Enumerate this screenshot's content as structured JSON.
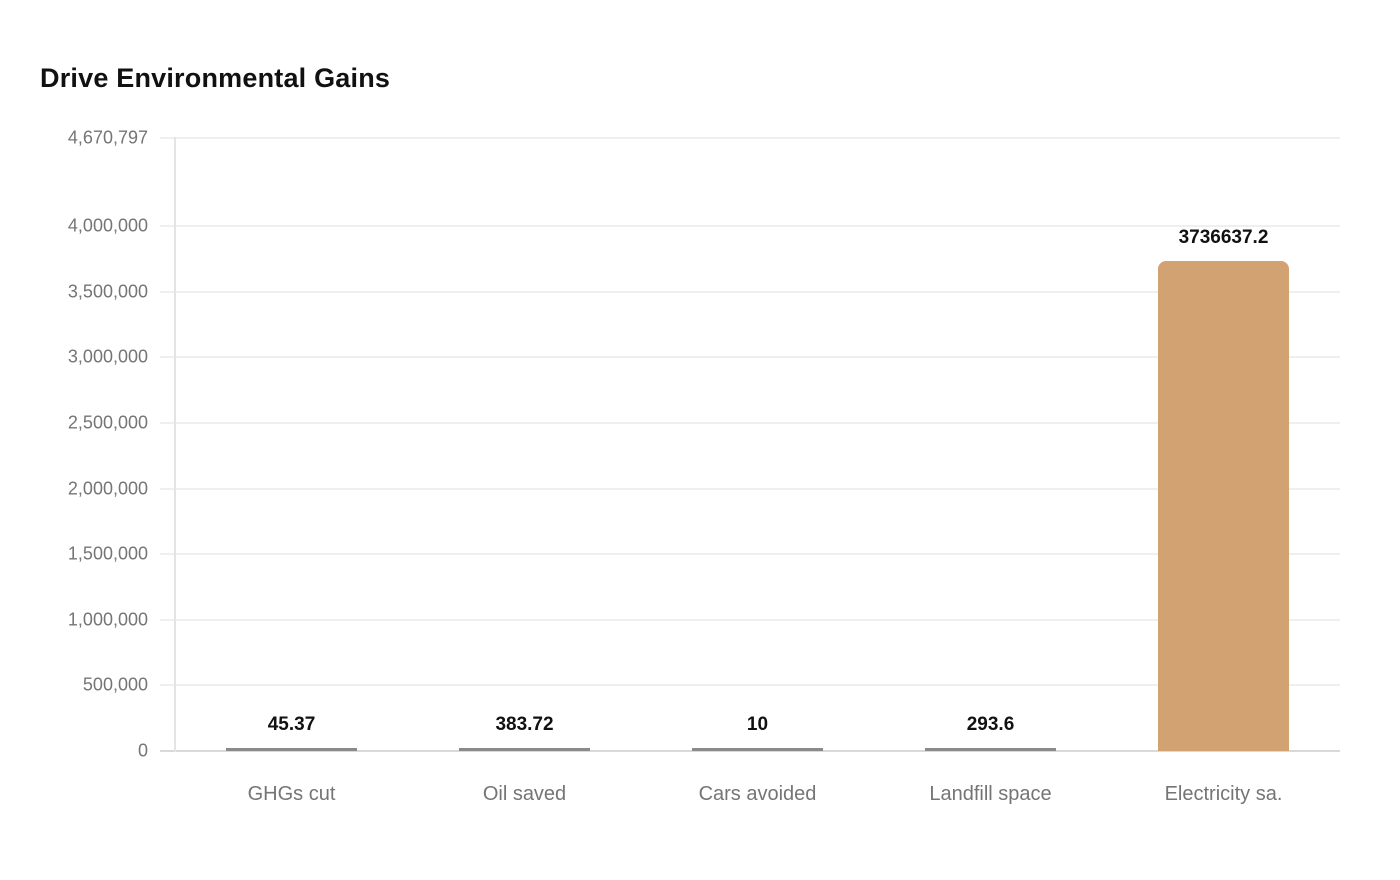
{
  "chart_data": {
    "type": "bar",
    "title": "Drive Environmental Gains",
    "categories": [
      "GHGs cut",
      "Oil saved",
      "Cars avoided",
      "Landfill space",
      "Electricity sa."
    ],
    "values": [
      45.37,
      383.72,
      10,
      293.6,
      3736637.2
    ],
    "value_labels": [
      "45.37",
      "383.72",
      "10",
      "293.6",
      "3736637.2"
    ],
    "xlabel": "",
    "ylabel": "",
    "ylim": [
      0,
      4670797
    ],
    "y_tick_values": [
      0,
      500000,
      1000000,
      1500000,
      2000000,
      2500000,
      3000000,
      3500000,
      4000000,
      4670797
    ],
    "y_tick_labels": [
      "0",
      "500,000",
      "1,000,000",
      "1,500,000",
      "2,000,000",
      "2,500,000",
      "3,000,000",
      "3,500,000",
      "4,000,000",
      "4,670,797"
    ],
    "grid": true,
    "legend": "none",
    "colors": {
      "bar": "#d2a273",
      "minimal_bar": "#8a8a8a",
      "title_text": "#111111",
      "axis_text": "#757575",
      "value_label_text": "#111111",
      "grid_line": "#efefef",
      "baseline": "#d9d9d9",
      "axis_line": "#e4e4e4",
      "background": "#ffffff"
    }
  }
}
